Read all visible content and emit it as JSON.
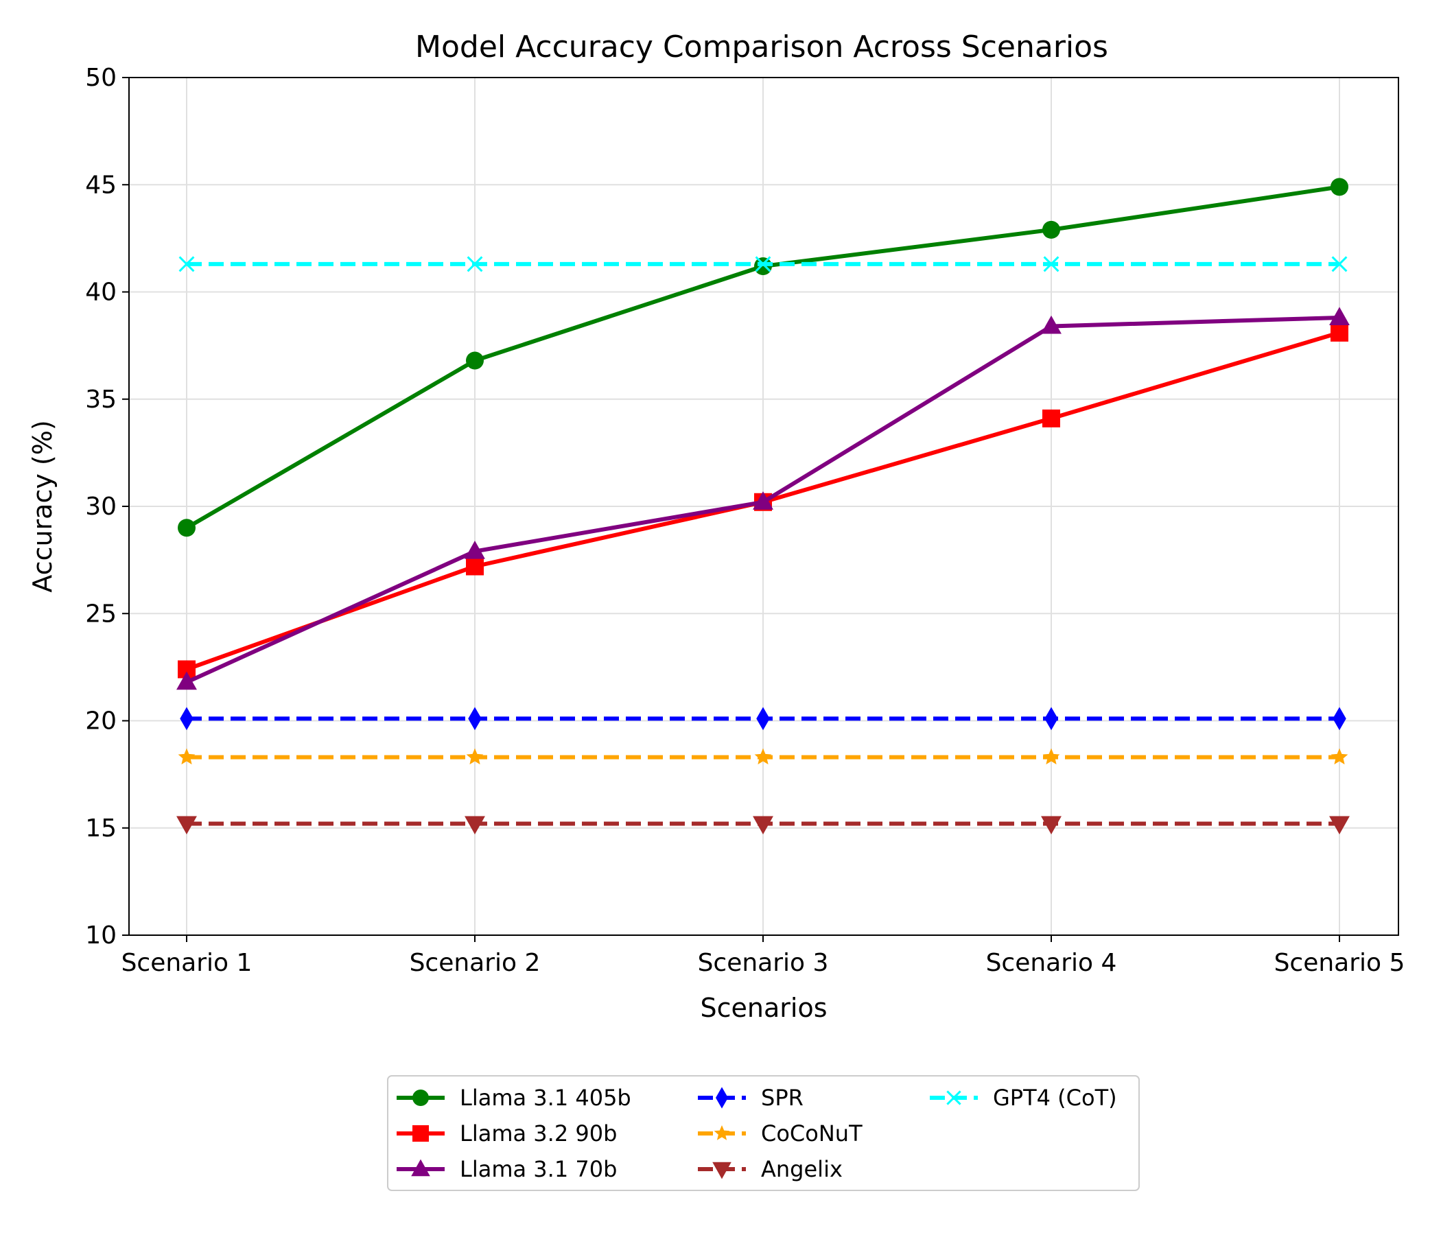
{
  "chart_data": {
    "type": "line",
    "title": "Model Accuracy Comparison Across Scenarios",
    "xlabel": "Scenarios",
    "ylabel": "Accuracy (%)",
    "categories": [
      "Scenario 1",
      "Scenario 2",
      "Scenario 3",
      "Scenario 4",
      "Scenario 5"
    ],
    "ylim": [
      10,
      50
    ],
    "yticks": [
      10,
      15,
      20,
      25,
      30,
      35,
      40,
      45,
      50
    ],
    "grid": true,
    "legend_position": "bottom-center",
    "series": [
      {
        "name": "Llama 3.1 405b",
        "values": [
          29.0,
          36.8,
          41.2,
          42.9,
          44.9
        ],
        "color": "#008000",
        "marker": "circle",
        "dashed": false
      },
      {
        "name": "Llama 3.2 90b",
        "values": [
          22.4,
          27.2,
          30.2,
          34.1,
          38.1
        ],
        "color": "#ff0000",
        "marker": "square",
        "dashed": false
      },
      {
        "name": "Llama 3.1 70b",
        "values": [
          21.8,
          27.9,
          30.2,
          38.4,
          38.8
        ],
        "color": "#800080",
        "marker": "triangle-up",
        "dashed": false
      },
      {
        "name": "SPR",
        "values": [
          20.1,
          20.1,
          20.1,
          20.1,
          20.1
        ],
        "color": "#0000ff",
        "marker": "diamond",
        "dashed": true
      },
      {
        "name": "CoCoNuT",
        "values": [
          18.3,
          18.3,
          18.3,
          18.3,
          18.3
        ],
        "color": "#ffa500",
        "marker": "star",
        "dashed": true
      },
      {
        "name": "Angelix",
        "values": [
          15.2,
          15.2,
          15.2,
          15.2,
          15.2
        ],
        "color": "#a52a2a",
        "marker": "triangle-down",
        "dashed": true
      },
      {
        "name": "GPT4 (CoT)",
        "values": [
          41.3,
          41.3,
          41.3,
          41.3,
          41.3
        ],
        "color": "#00ffff",
        "marker": "x",
        "dashed": true
      }
    ]
  }
}
